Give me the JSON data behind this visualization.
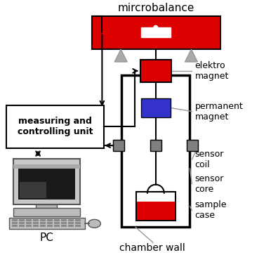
{
  "bg_color": "#ffffff",
  "title_text": "mircrobalance",
  "labels": {
    "elektro_magnet": "elektro\nmagnet",
    "permanent_magnet": "permanent\nmagnet",
    "sensor_coil": "sensor\ncoil",
    "sensor_core": "sensor\ncore",
    "sample_case": "sample\ncase",
    "chamber_wall": "chamber wall",
    "measuring_unit": "measuring and\ncontrolling unit",
    "pc": "PC"
  },
  "colors": {
    "red": "#dd0000",
    "blue": "#3333cc",
    "gray": "#808080",
    "dark_gray": "#555555",
    "light_gray": "#aaaaaa",
    "mid_gray": "#999999",
    "black": "#000000",
    "white": "#ffffff"
  },
  "figsize": [
    3.96,
    3.63
  ],
  "dpi": 100
}
